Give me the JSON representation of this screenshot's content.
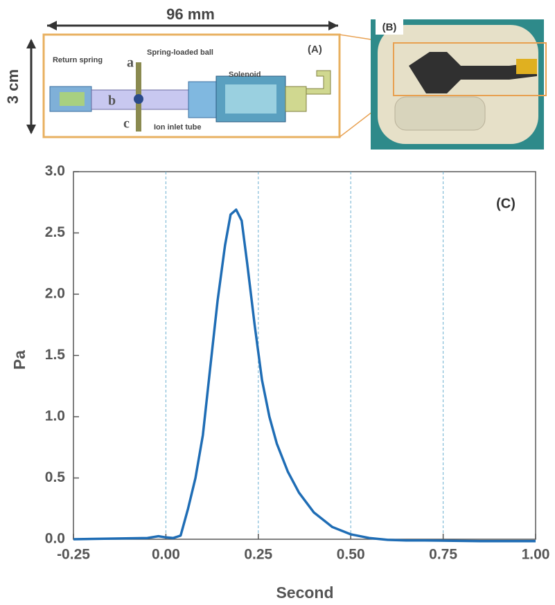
{
  "diagram": {
    "width_label": "96 mm",
    "height_label": "3 cm",
    "panel_a": "(A)",
    "panel_b": "(B)",
    "return_spring": "Return spring",
    "ball": "Spring-loaded ball",
    "solenoid": "Solenoid",
    "a": "a",
    "b": "b",
    "c": "c",
    "inlet": "Ion inlet tube"
  },
  "chart_data": {
    "type": "line",
    "panel_label": "(C)",
    "x_label": "Second",
    "y_label": "Pa",
    "color": "#1f6db5",
    "x": [
      -0.25,
      -0.05,
      -0.02,
      0.0,
      0.02,
      0.04,
      0.06,
      0.08,
      0.1,
      0.12,
      0.14,
      0.16,
      0.175,
      0.19,
      0.205,
      0.22,
      0.24,
      0.26,
      0.28,
      0.3,
      0.33,
      0.36,
      0.4,
      0.45,
      0.5,
      0.55,
      0.6,
      0.65,
      0.7,
      0.85,
      1.0
    ],
    "values": [
      0.0,
      0.01,
      0.025,
      0.015,
      0.01,
      0.03,
      0.25,
      0.5,
      0.85,
      1.4,
      1.95,
      2.4,
      2.65,
      2.69,
      2.6,
      2.25,
      1.75,
      1.3,
      1.0,
      0.78,
      0.55,
      0.38,
      0.22,
      0.1,
      0.04,
      0.01,
      -0.005,
      -0.01,
      -0.01,
      -0.015,
      -0.015
    ],
    "xlim": [
      -0.25,
      1.0
    ],
    "ylim": [
      0,
      3.0
    ],
    "xticks": [
      -0.25,
      {
        "value": 0,
        "label": "0.00"
      },
      0.25,
      {
        "value": 0.5,
        "label": "0.50"
      },
      0.75,
      {
        "value": 1,
        "label": "1.00"
      }
    ],
    "yticks": [
      {
        "value": 0,
        "label": "0.0"
      },
      0.5,
      {
        "value": 1,
        "label": "1.0"
      },
      1.5,
      {
        "value": 2,
        "label": "2.0"
      },
      2.5,
      {
        "value": 3,
        "label": "3.0"
      }
    ],
    "xgrid": true
  }
}
